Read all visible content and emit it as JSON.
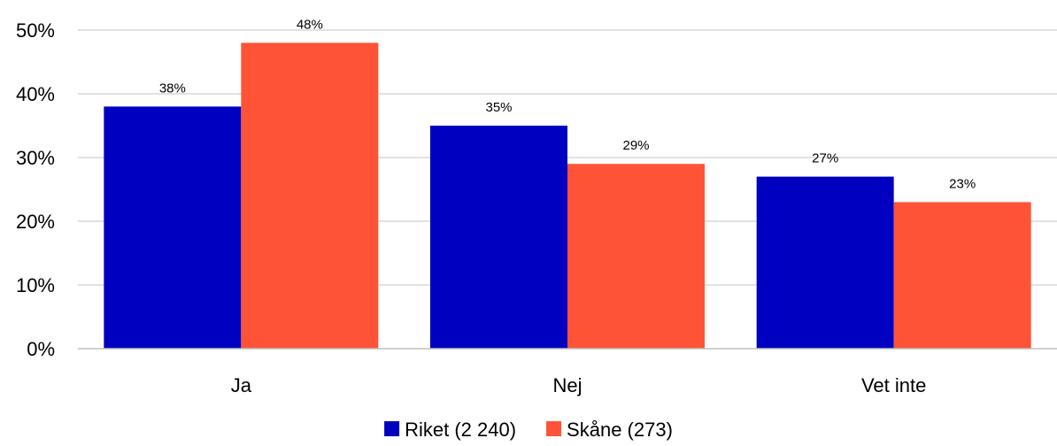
{
  "chart_data": {
    "type": "bar",
    "title": "",
    "xlabel": "",
    "ylabel": "",
    "categories": [
      "Ja",
      "Nej",
      "Vet inte"
    ],
    "series": [
      {
        "name": "Riket (2 240)",
        "color": "#0000c0",
        "values": [
          38,
          35,
          27
        ],
        "labels": [
          "38%",
          "35%",
          "27%"
        ]
      },
      {
        "name": "Skåne (273)",
        "color": "#ff5337",
        "values": [
          48,
          29,
          23
        ],
        "labels": [
          "48%",
          "29%",
          "23%"
        ]
      }
    ],
    "ylim": [
      0,
      50
    ],
    "yticks": [
      0,
      10,
      20,
      30,
      40,
      50
    ],
    "ytick_labels": [
      "0%",
      "10%",
      "20%",
      "30%",
      "40%",
      "50%"
    ],
    "grid": true,
    "legend_position": "bottom"
  }
}
